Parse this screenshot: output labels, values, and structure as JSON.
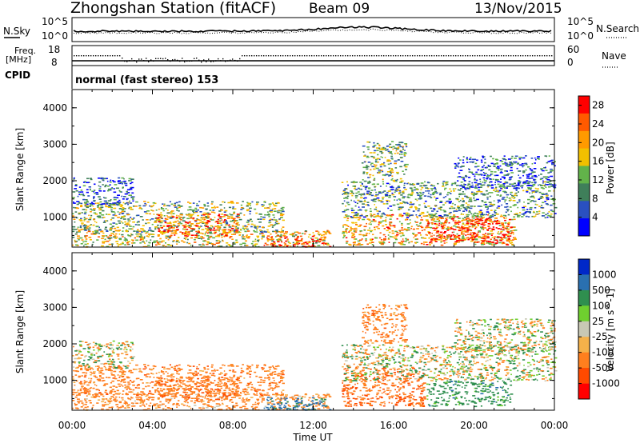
{
  "header": {
    "station": "Zhongshan Station (fitACF)",
    "beam": "Beam 09",
    "date": "13/Nov/2015"
  },
  "noise_panel": {
    "left_label": "N.Sky",
    "right_label": "N.Search",
    "ticks_left": [
      "10^5",
      "10^0"
    ],
    "ticks_right": [
      "10^5",
      "10^0"
    ]
  },
  "freq_panel": {
    "left_label_1": "Freq.",
    "left_label_2": "[MHz]",
    "right_label": "Nave",
    "ticks_left": [
      "18",
      "8"
    ],
    "ticks_right": [
      "60",
      "0"
    ]
  },
  "cpid": {
    "label": "CPID",
    "mode": "normal (fast stereo) 153"
  },
  "colors": {
    "power_scale": [
      "#0000ff",
      "#2a50c0",
      "#3f7f5a",
      "#62b34a",
      "#f2c000",
      "#ff9a00",
      "#ff5a00",
      "#ff0000"
    ],
    "velocity_scale": [
      "#ff0000",
      "#ff4a00",
      "#ff7f1e",
      "#f4b14a",
      "#c8c8b4",
      "#6fcf2f",
      "#2f8f4f",
      "#2a70b0",
      "#0028c8"
    ]
  },
  "chart_data": [
    {
      "type": "heatmap",
      "title": "",
      "xlabel": "Time UT",
      "ylabel": "Slant Range [km]",
      "x_tick_labels": [
        "00:00",
        "04:00",
        "08:00",
        "12:00",
        "16:00",
        "20:00",
        "00:00"
      ],
      "xlim_hours": [
        0,
        24
      ],
      "ylim": [
        180,
        4500
      ],
      "y_ticks": [
        1000,
        2000,
        3000,
        4000
      ],
      "colorbar": {
        "label": "Power [dB]",
        "ticks": [
          4,
          8,
          12,
          16,
          20,
          24,
          28
        ],
        "range": [
          0,
          30
        ]
      },
      "echo_regions": [
        {
          "t": [
            0,
            12.8
          ],
          "r": [
            200,
            650
          ],
          "level": 0.55
        },
        {
          "t": [
            0,
            10.5
          ],
          "r": [
            600,
            1450
          ],
          "level": 0.45
        },
        {
          "t": [
            4.2,
            8.2
          ],
          "r": [
            450,
            1100
          ],
          "level": 0.8
        },
        {
          "t": [
            9.5,
            12.8
          ],
          "r": [
            200,
            500
          ],
          "level": 0.85
        },
        {
          "t": [
            13.4,
            22
          ],
          "r": [
            250,
            1100
          ],
          "level": 0.65
        },
        {
          "t": [
            17.6,
            21.8
          ],
          "r": [
            300,
            1000
          ],
          "level": 0.9
        },
        {
          "t": [
            13.4,
            24
          ],
          "r": [
            1000,
            2000
          ],
          "level": 0.35
        },
        {
          "t": [
            14.4,
            16.6
          ],
          "r": [
            2000,
            3100
          ],
          "level": 0.4
        },
        {
          "t": [
            0,
            3
          ],
          "r": [
            1350,
            2100
          ],
          "level": 0.2
        },
        {
          "t": [
            19,
            24
          ],
          "r": [
            1800,
            2700
          ],
          "level": 0.2
        }
      ]
    },
    {
      "type": "heatmap",
      "title": "",
      "xlabel": "Time UT",
      "ylabel": "Slant Range [km]",
      "x_tick_labels": [
        "00:00",
        "04:00",
        "08:00",
        "12:00",
        "16:00",
        "20:00",
        "00:00"
      ],
      "xlim_hours": [
        0,
        24
      ],
      "ylim": [
        180,
        4500
      ],
      "y_ticks": [
        1000,
        2000,
        3000,
        4000
      ],
      "colorbar": {
        "label": "Velocity [m s^-1]",
        "ticks": [
          1000,
          500,
          100,
          25,
          -25,
          -100,
          -500,
          -1000
        ],
        "range": [
          -1200,
          1200
        ]
      },
      "echo_regions": [
        {
          "t": [
            0,
            12.8
          ],
          "r": [
            200,
            650
          ],
          "v": -250
        },
        {
          "t": [
            0,
            10.5
          ],
          "r": [
            600,
            1450
          ],
          "v": -300
        },
        {
          "t": [
            4.2,
            8.2
          ],
          "r": [
            450,
            1100
          ],
          "v": -350
        },
        {
          "t": [
            9.5,
            12.8
          ],
          "r": [
            200,
            550
          ],
          "v": 600
        },
        {
          "t": [
            13.4,
            17.5
          ],
          "r": [
            300,
            1400
          ],
          "v": -450
        },
        {
          "t": [
            17.6,
            21.8
          ],
          "r": [
            300,
            1000
          ],
          "v": 300
        },
        {
          "t": [
            13.4,
            24
          ],
          "r": [
            1000,
            2000
          ],
          "v": 0
        },
        {
          "t": [
            14.4,
            16.6
          ],
          "r": [
            2000,
            3100
          ],
          "v": -300
        },
        {
          "t": [
            0,
            3
          ],
          "r": [
            1350,
            2100
          ],
          "v": 0
        },
        {
          "t": [
            19,
            24
          ],
          "r": [
            1800,
            2700
          ],
          "v": 0
        }
      ]
    }
  ]
}
